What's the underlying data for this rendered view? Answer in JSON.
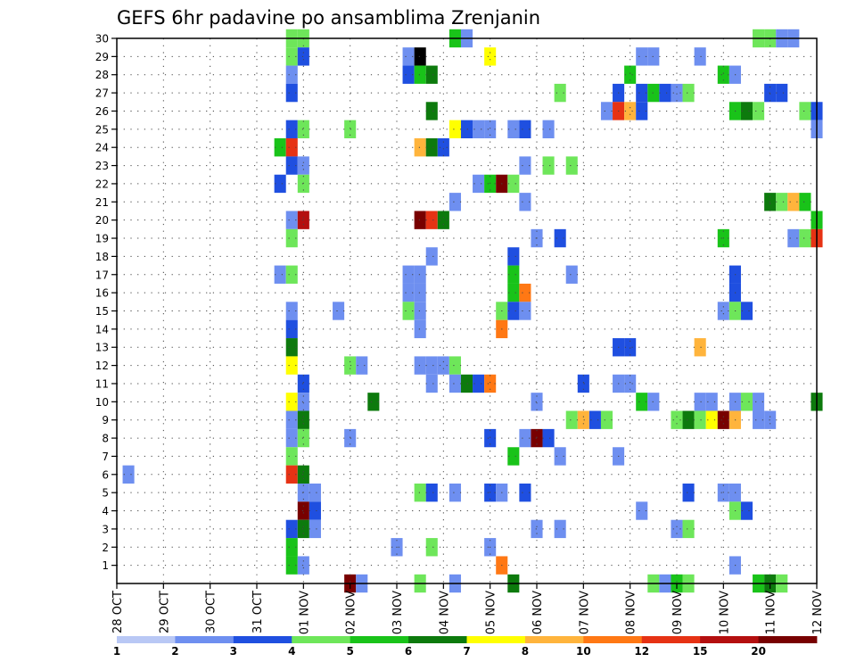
{
  "chart_data": {
    "type": "heatmap",
    "title": "GEFS 6hr padavine po ansamblima Zrenjanin",
    "xlabel": "",
    "ylabel": "",
    "y_tick_labels": [
      "1",
      "2",
      "3",
      "4",
      "5",
      "6",
      "7",
      "8",
      "9",
      "10",
      "11",
      "12",
      "13",
      "14",
      "15",
      "16",
      "17",
      "18",
      "19",
      "20",
      "21",
      "22",
      "23",
      "24",
      "25",
      "26",
      "27",
      "28",
      "29",
      "30"
    ],
    "x_tick_labels": [
      "28 OCT",
      "29 OCT",
      "30 OCT",
      "31 OCT",
      "01 NOV",
      "02 NOV",
      "03 NOV",
      "04 NOV",
      "05 NOV",
      "06 NOV",
      "07 NOV",
      "08 NOV",
      "09 NOV",
      "10 NOV",
      "11 NOV",
      "12 NOV"
    ],
    "x_tick_positions": [
      0,
      4,
      8,
      12,
      16,
      20,
      24,
      28,
      32,
      36,
      40,
      44,
      48,
      52,
      56,
      60
    ],
    "x_range": [
      0,
      60
    ],
    "y_range": [
      0,
      30
    ],
    "x_step_hours": 6,
    "grid": true,
    "colorbar": {
      "boundaries": [
        "1",
        "2",
        "3",
        "4",
        "5",
        "6",
        "7",
        "8",
        "10",
        "12",
        "15",
        "20"
      ],
      "colors": [
        "#b9c8f5",
        "#6e8ff0",
        "#1f4fe0",
        "#6ee65a",
        "#19c319",
        "#0d7a0d",
        "#ffff00",
        "#ffb43c",
        "#ff7814",
        "#e63214",
        "#b40f0f",
        "#780000"
      ]
    },
    "cells": [
      [
        15,
        30,
        3
      ],
      [
        16,
        30,
        3
      ],
      [
        29,
        30,
        4
      ],
      [
        30,
        30,
        1
      ],
      [
        55,
        30,
        3
      ],
      [
        56,
        30,
        3
      ],
      [
        57,
        30,
        1
      ],
      [
        58,
        30,
        1
      ],
      [
        15,
        29,
        3
      ],
      [
        16,
        29,
        2
      ],
      [
        25,
        29,
        1
      ],
      [
        26,
        29,
        13
      ],
      [
        32,
        29,
        6
      ],
      [
        45,
        29,
        1
      ],
      [
        46,
        29,
        1
      ],
      [
        50,
        29,
        1
      ],
      [
        15,
        28,
        1
      ],
      [
        25,
        28,
        2
      ],
      [
        26,
        28,
        4
      ],
      [
        27,
        28,
        5
      ],
      [
        44,
        28,
        4
      ],
      [
        52,
        28,
        4
      ],
      [
        53,
        28,
        1
      ],
      [
        15,
        27,
        2
      ],
      [
        38,
        27,
        3
      ],
      [
        43,
        27,
        2
      ],
      [
        45,
        27,
        2
      ],
      [
        46,
        27,
        4
      ],
      [
        47,
        27,
        2
      ],
      [
        48,
        27,
        1
      ],
      [
        49,
        27,
        3
      ],
      [
        56,
        27,
        2
      ],
      [
        57,
        27,
        2
      ],
      [
        27,
        26,
        5
      ],
      [
        42,
        26,
        1
      ],
      [
        43,
        26,
        9
      ],
      [
        44,
        26,
        7
      ],
      [
        45,
        26,
        2
      ],
      [
        53,
        26,
        4
      ],
      [
        54,
        26,
        5
      ],
      [
        55,
        26,
        3
      ],
      [
        59,
        26,
        3
      ],
      [
        60,
        26,
        2
      ],
      [
        15,
        25,
        2
      ],
      [
        16,
        25,
        3
      ],
      [
        20,
        25,
        3
      ],
      [
        29,
        25,
        6
      ],
      [
        30,
        25,
        2
      ],
      [
        31,
        25,
        1
      ],
      [
        32,
        25,
        1
      ],
      [
        34,
        25,
        1
      ],
      [
        35,
        25,
        2
      ],
      [
        37,
        25,
        1
      ],
      [
        60,
        25,
        1
      ],
      [
        14,
        24,
        4
      ],
      [
        15,
        24,
        9
      ],
      [
        26,
        24,
        7
      ],
      [
        27,
        24,
        5
      ],
      [
        28,
        24,
        2
      ],
      [
        15,
        23,
        2
      ],
      [
        16,
        23,
        1
      ],
      [
        35,
        23,
        1
      ],
      [
        37,
        23,
        3
      ],
      [
        39,
        23,
        3
      ],
      [
        14,
        22,
        2
      ],
      [
        16,
        22,
        3
      ],
      [
        31,
        22,
        1
      ],
      [
        32,
        22,
        4
      ],
      [
        33,
        22,
        11
      ],
      [
        34,
        22,
        3
      ],
      [
        29,
        21,
        1
      ],
      [
        35,
        21,
        1
      ],
      [
        56,
        21,
        5
      ],
      [
        57,
        21,
        3
      ],
      [
        58,
        21,
        7
      ],
      [
        59,
        21,
        4
      ],
      [
        15,
        20,
        1
      ],
      [
        16,
        20,
        10
      ],
      [
        26,
        20,
        11
      ],
      [
        27,
        20,
        9
      ],
      [
        28,
        20,
        5
      ],
      [
        60,
        20,
        4
      ],
      [
        15,
        19,
        3
      ],
      [
        36,
        19,
        1
      ],
      [
        38,
        19,
        2
      ],
      [
        52,
        19,
        4
      ],
      [
        58,
        19,
        1
      ],
      [
        59,
        19,
        3
      ],
      [
        60,
        19,
        9
      ],
      [
        27,
        18,
        1
      ],
      [
        34,
        18,
        2
      ],
      [
        14,
        17,
        1
      ],
      [
        15,
        17,
        3
      ],
      [
        25,
        17,
        1
      ],
      [
        26,
        17,
        1
      ],
      [
        34,
        17,
        4
      ],
      [
        39,
        17,
        1
      ],
      [
        53,
        17,
        2
      ],
      [
        25,
        16,
        1
      ],
      [
        26,
        16,
        1
      ],
      [
        34,
        16,
        4
      ],
      [
        35,
        16,
        8
      ],
      [
        53,
        16,
        2
      ],
      [
        15,
        15,
        1
      ],
      [
        19,
        15,
        1
      ],
      [
        25,
        15,
        3
      ],
      [
        26,
        15,
        1
      ],
      [
        33,
        15,
        3
      ],
      [
        34,
        15,
        2
      ],
      [
        35,
        15,
        1
      ],
      [
        52,
        15,
        1
      ],
      [
        53,
        15,
        3
      ],
      [
        54,
        15,
        2
      ],
      [
        15,
        14,
        2
      ],
      [
        26,
        14,
        1
      ],
      [
        33,
        14,
        8
      ],
      [
        15,
        13,
        5
      ],
      [
        43,
        13,
        2
      ],
      [
        44,
        13,
        2
      ],
      [
        50,
        13,
        7
      ],
      [
        15,
        12,
        6
      ],
      [
        20,
        12,
        3
      ],
      [
        21,
        12,
        1
      ],
      [
        26,
        12,
        1
      ],
      [
        27,
        12,
        1
      ],
      [
        28,
        12,
        1
      ],
      [
        29,
        12,
        3
      ],
      [
        16,
        11,
        2
      ],
      [
        27,
        11,
        1
      ],
      [
        29,
        11,
        1
      ],
      [
        30,
        11,
        5
      ],
      [
        31,
        11,
        2
      ],
      [
        32,
        11,
        8
      ],
      [
        40,
        11,
        2
      ],
      [
        43,
        11,
        1
      ],
      [
        44,
        11,
        1
      ],
      [
        15,
        10,
        6
      ],
      [
        16,
        10,
        1
      ],
      [
        22,
        10,
        5
      ],
      [
        36,
        10,
        1
      ],
      [
        45,
        10,
        4
      ],
      [
        46,
        10,
        1
      ],
      [
        50,
        10,
        1
      ],
      [
        51,
        10,
        1
      ],
      [
        53,
        10,
        1
      ],
      [
        54,
        10,
        3
      ],
      [
        55,
        10,
        1
      ],
      [
        60,
        10,
        5
      ],
      [
        15,
        9,
        1
      ],
      [
        16,
        9,
        5
      ],
      [
        39,
        9,
        3
      ],
      [
        40,
        9,
        7
      ],
      [
        41,
        9,
        2
      ],
      [
        42,
        9,
        3
      ],
      [
        48,
        9,
        3
      ],
      [
        49,
        9,
        5
      ],
      [
        50,
        9,
        3
      ],
      [
        51,
        9,
        6
      ],
      [
        52,
        9,
        11
      ],
      [
        53,
        9,
        7
      ],
      [
        55,
        9,
        1
      ],
      [
        56,
        9,
        1
      ],
      [
        15,
        8,
        1
      ],
      [
        16,
        8,
        3
      ],
      [
        20,
        8,
        1
      ],
      [
        32,
        8,
        2
      ],
      [
        35,
        8,
        1
      ],
      [
        36,
        8,
        11
      ],
      [
        37,
        8,
        2
      ],
      [
        15,
        7,
        3
      ],
      [
        34,
        7,
        4
      ],
      [
        38,
        7,
        1
      ],
      [
        43,
        7,
        1
      ],
      [
        1,
        6,
        1
      ],
      [
        15,
        6,
        9
      ],
      [
        16,
        6,
        5
      ],
      [
        16,
        5,
        1
      ],
      [
        17,
        5,
        1
      ],
      [
        26,
        5,
        3
      ],
      [
        27,
        5,
        2
      ],
      [
        29,
        5,
        1
      ],
      [
        32,
        5,
        2
      ],
      [
        33,
        5,
        1
      ],
      [
        35,
        5,
        2
      ],
      [
        49,
        5,
        2
      ],
      [
        52,
        5,
        1
      ],
      [
        53,
        5,
        1
      ],
      [
        16,
        4,
        11
      ],
      [
        17,
        4,
        2
      ],
      [
        45,
        4,
        1
      ],
      [
        53,
        4,
        3
      ],
      [
        54,
        4,
        2
      ],
      [
        15,
        3,
        2
      ],
      [
        16,
        3,
        5
      ],
      [
        17,
        3,
        1
      ],
      [
        36,
        3,
        1
      ],
      [
        38,
        3,
        1
      ],
      [
        48,
        3,
        1
      ],
      [
        49,
        3,
        3
      ],
      [
        15,
        2,
        4
      ],
      [
        24,
        2,
        1
      ],
      [
        27,
        2,
        3
      ],
      [
        32,
        2,
        1
      ],
      [
        15,
        1,
        4
      ],
      [
        16,
        1,
        1
      ],
      [
        33,
        1,
        8
      ],
      [
        53,
        1,
        1
      ],
      [
        20,
        0,
        11
      ],
      [
        21,
        0,
        1
      ],
      [
        26,
        0,
        3
      ],
      [
        29,
        0,
        1
      ],
      [
        34,
        0,
        5
      ],
      [
        46,
        0,
        3
      ],
      [
        47,
        0,
        1
      ],
      [
        48,
        0,
        4
      ],
      [
        49,
        0,
        3
      ],
      [
        55,
        0,
        4
      ],
      [
        56,
        0,
        5
      ],
      [
        57,
        0,
        3
      ]
    ]
  }
}
